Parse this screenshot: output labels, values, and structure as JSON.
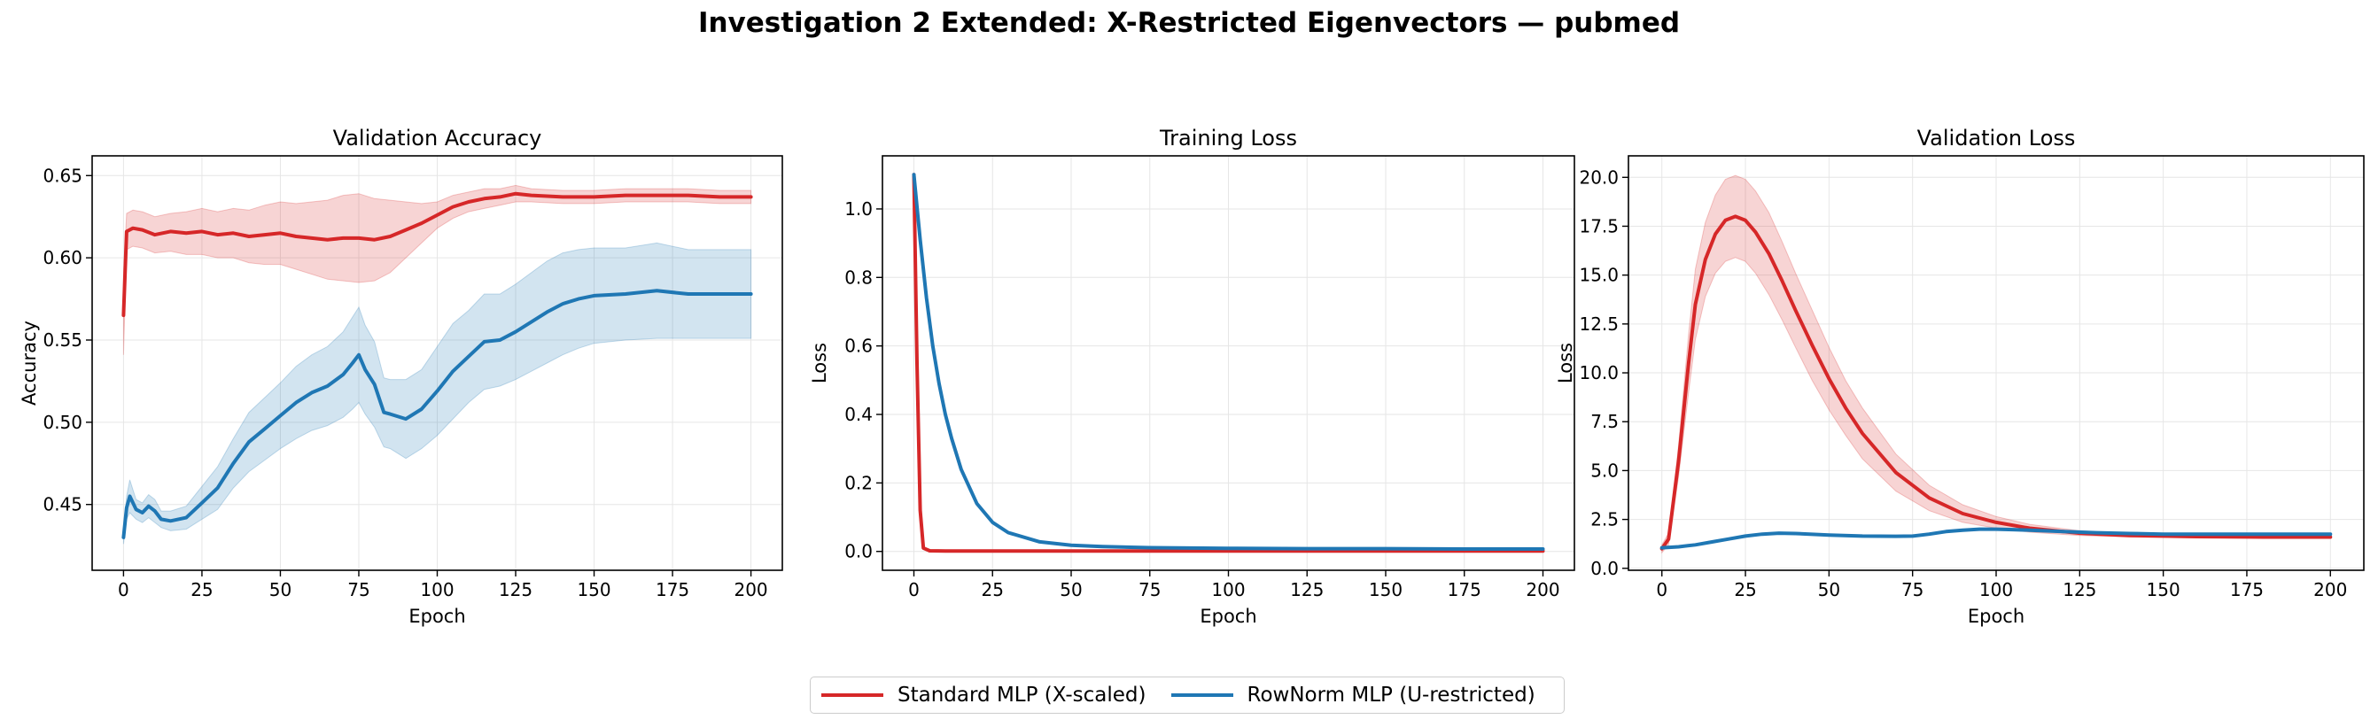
{
  "figure": {
    "title": "Investigation 2 Extended: X-Restricted Eigenvectors — pubmed"
  },
  "colors": {
    "standard": "#d62728",
    "rownorm": "#1f77b4",
    "grid": "#e6e6e6"
  },
  "legend": {
    "items": [
      {
        "label": "Standard MLP (X-scaled)",
        "color": "#d62728"
      },
      {
        "label": "RowNorm MLP (U-restricted)",
        "color": "#1f77b4"
      }
    ]
  },
  "chart_data": [
    {
      "type": "line",
      "title": "Validation Accuracy",
      "xlabel": "Epoch",
      "ylabel": "Accuracy",
      "xlim": [
        -10,
        210
      ],
      "ylim": [
        0.41,
        0.662
      ],
      "xticks": [
        0,
        25,
        50,
        75,
        100,
        125,
        150,
        175,
        200
      ],
      "yticks": [
        0.45,
        0.5,
        0.55,
        0.6,
        0.65
      ],
      "ytick_labels": [
        "0.45",
        "0.50",
        "0.55",
        "0.60",
        "0.65"
      ],
      "grid": true,
      "series": [
        {
          "name": "Standard MLP (X-scaled)",
          "color": "#d62728",
          "x": [
            0,
            1,
            3,
            6,
            10,
            15,
            20,
            25,
            30,
            35,
            40,
            45,
            50,
            55,
            60,
            65,
            70,
            75,
            80,
            85,
            90,
            95,
            100,
            105,
            110,
            115,
            120,
            125,
            130,
            140,
            150,
            160,
            170,
            180,
            190,
            200
          ],
          "y": [
            0.565,
            0.616,
            0.618,
            0.617,
            0.614,
            0.616,
            0.615,
            0.616,
            0.614,
            0.615,
            0.613,
            0.614,
            0.615,
            0.613,
            0.612,
            0.611,
            0.612,
            0.612,
            0.611,
            0.613,
            0.617,
            0.621,
            0.626,
            0.631,
            0.634,
            0.636,
            0.637,
            0.639,
            0.638,
            0.637,
            0.637,
            0.638,
            0.638,
            0.638,
            0.637,
            0.637
          ],
          "lower": [
            0.541,
            0.605,
            0.607,
            0.606,
            0.603,
            0.604,
            0.602,
            0.602,
            0.6,
            0.6,
            0.597,
            0.596,
            0.596,
            0.593,
            0.59,
            0.587,
            0.586,
            0.585,
            0.586,
            0.591,
            0.6,
            0.609,
            0.618,
            0.624,
            0.628,
            0.63,
            0.632,
            0.634,
            0.634,
            0.633,
            0.633,
            0.634,
            0.634,
            0.634,
            0.633,
            0.633
          ],
          "upper": [
            0.589,
            0.627,
            0.629,
            0.628,
            0.625,
            0.627,
            0.628,
            0.63,
            0.628,
            0.63,
            0.629,
            0.632,
            0.634,
            0.633,
            0.634,
            0.635,
            0.638,
            0.639,
            0.636,
            0.635,
            0.634,
            0.633,
            0.634,
            0.638,
            0.64,
            0.642,
            0.642,
            0.644,
            0.642,
            0.641,
            0.641,
            0.642,
            0.642,
            0.642,
            0.641,
            0.641
          ]
        },
        {
          "name": "RowNorm MLP (U-restricted)",
          "color": "#1f77b4",
          "x": [
            0,
            1,
            2,
            4,
            6,
            8,
            10,
            12,
            15,
            20,
            25,
            30,
            35,
            40,
            45,
            50,
            55,
            60,
            65,
            70,
            73,
            75,
            77,
            80,
            83,
            85,
            90,
            95,
            100,
            105,
            110,
            115,
            120,
            125,
            130,
            135,
            140,
            145,
            150,
            160,
            170,
            180,
            190,
            200
          ],
          "y": [
            0.43,
            0.448,
            0.455,
            0.447,
            0.445,
            0.449,
            0.446,
            0.441,
            0.44,
            0.442,
            0.451,
            0.46,
            0.475,
            0.488,
            0.496,
            0.504,
            0.512,
            0.518,
            0.522,
            0.529,
            0.536,
            0.541,
            0.532,
            0.523,
            0.506,
            0.505,
            0.502,
            0.508,
            0.519,
            0.531,
            0.54,
            0.549,
            0.55,
            0.555,
            0.561,
            0.567,
            0.572,
            0.575,
            0.577,
            0.578,
            0.58,
            0.578,
            0.578,
            0.578
          ],
          "lower": [
            0.426,
            0.441,
            0.445,
            0.441,
            0.439,
            0.442,
            0.439,
            0.436,
            0.434,
            0.435,
            0.441,
            0.447,
            0.46,
            0.47,
            0.477,
            0.484,
            0.49,
            0.495,
            0.498,
            0.503,
            0.508,
            0.512,
            0.505,
            0.497,
            0.485,
            0.484,
            0.478,
            0.484,
            0.492,
            0.502,
            0.512,
            0.52,
            0.522,
            0.526,
            0.531,
            0.536,
            0.541,
            0.545,
            0.548,
            0.55,
            0.551,
            0.551,
            0.551,
            0.551
          ],
          "upper": [
            0.434,
            0.455,
            0.465,
            0.453,
            0.451,
            0.456,
            0.453,
            0.446,
            0.446,
            0.449,
            0.461,
            0.473,
            0.49,
            0.506,
            0.515,
            0.524,
            0.534,
            0.541,
            0.546,
            0.555,
            0.564,
            0.57,
            0.559,
            0.549,
            0.527,
            0.526,
            0.526,
            0.532,
            0.546,
            0.56,
            0.568,
            0.578,
            0.578,
            0.584,
            0.591,
            0.598,
            0.603,
            0.605,
            0.606,
            0.606,
            0.609,
            0.605,
            0.605,
            0.605
          ]
        }
      ]
    },
    {
      "type": "line",
      "title": "Training Loss",
      "xlabel": "Epoch",
      "ylabel": "Loss",
      "xlim": [
        -10,
        210
      ],
      "ylim": [
        -0.055,
        1.155
      ],
      "xticks": [
        0,
        25,
        50,
        75,
        100,
        125,
        150,
        175,
        200
      ],
      "yticks": [
        0,
        0.2,
        0.4,
        0.6,
        0.8,
        1.0
      ],
      "ytick_labels": [
        "0.0",
        "0.2",
        "0.4",
        "0.6",
        "0.8",
        "1.0"
      ],
      "grid": true,
      "series": [
        {
          "name": "Standard MLP (X-scaled)",
          "color": "#d62728",
          "x": [
            0,
            1,
            2,
            3,
            5,
            10,
            50,
            100,
            150,
            200
          ],
          "y": [
            1.1,
            0.55,
            0.12,
            0.01,
            0.002,
            0.001,
            0.001,
            0.001,
            0.001,
            0.001
          ]
        },
        {
          "name": "RowNorm MLP (U-restricted)",
          "color": "#1f77b4",
          "x": [
            0,
            2,
            4,
            6,
            8,
            10,
            12,
            15,
            20,
            25,
            30,
            40,
            50,
            60,
            75,
            100,
            125,
            150,
            175,
            200
          ],
          "y": [
            1.1,
            0.91,
            0.74,
            0.6,
            0.49,
            0.4,
            0.33,
            0.24,
            0.14,
            0.085,
            0.055,
            0.028,
            0.018,
            0.014,
            0.011,
            0.009,
            0.008,
            0.008,
            0.007,
            0.007
          ]
        }
      ]
    },
    {
      "type": "line",
      "title": "Validation Loss",
      "xlabel": "Epoch",
      "ylabel": "Loss",
      "xlim": [
        -10,
        210
      ],
      "ylim": [
        -0.1,
        21.1
      ],
      "xticks": [
        0,
        25,
        50,
        75,
        100,
        125,
        150,
        175,
        200
      ],
      "yticks": [
        0,
        2.5,
        5,
        7.5,
        10,
        12.5,
        15,
        17.5,
        20
      ],
      "ytick_labels": [
        "0.0",
        "2.5",
        "5.0",
        "7.5",
        "10.0",
        "12.5",
        "15.0",
        "17.5",
        "20.0"
      ],
      "grid": true,
      "series": [
        {
          "name": "Standard MLP (X-scaled)",
          "color": "#d62728",
          "x": [
            0,
            2,
            5,
            8,
            10,
            13,
            16,
            19,
            22,
            25,
            28,
            32,
            36,
            40,
            45,
            50,
            55,
            60,
            70,
            80,
            90,
            100,
            110,
            125,
            140,
            160,
            180,
            200
          ],
          "y": [
            1.0,
            1.5,
            5.5,
            10.5,
            13.5,
            15.8,
            17.1,
            17.8,
            18.0,
            17.8,
            17.2,
            16.1,
            14.7,
            13.2,
            11.4,
            9.7,
            8.2,
            6.9,
            4.9,
            3.6,
            2.8,
            2.35,
            2.05,
            1.8,
            1.68,
            1.62,
            1.6,
            1.6
          ],
          "lower": [
            0.8,
            1.2,
            4.7,
            9.0,
            11.7,
            13.9,
            15.1,
            15.7,
            15.9,
            15.7,
            15.1,
            14.0,
            12.7,
            11.3,
            9.6,
            8.1,
            6.8,
            5.6,
            3.95,
            2.95,
            2.35,
            2.05,
            1.85,
            1.68,
            1.6,
            1.56,
            1.55,
            1.55
          ],
          "upper": [
            1.2,
            1.8,
            6.3,
            12.0,
            15.3,
            17.7,
            19.1,
            19.9,
            20.1,
            19.9,
            19.3,
            18.2,
            16.7,
            15.1,
            13.2,
            11.3,
            9.6,
            8.2,
            5.85,
            4.25,
            3.25,
            2.65,
            2.25,
            1.92,
            1.76,
            1.68,
            1.65,
            1.65
          ]
        },
        {
          "name": "RowNorm MLP (U-restricted)",
          "color": "#1f77b4",
          "x": [
            0,
            5,
            10,
            15,
            20,
            25,
            30,
            35,
            40,
            50,
            60,
            70,
            75,
            80,
            85,
            90,
            95,
            100,
            105,
            110,
            120,
            130,
            140,
            150,
            160,
            175,
            200
          ],
          "y": [
            1.05,
            1.1,
            1.2,
            1.35,
            1.5,
            1.65,
            1.75,
            1.8,
            1.78,
            1.7,
            1.65,
            1.64,
            1.65,
            1.75,
            1.88,
            1.95,
            2.0,
            2.0,
            1.98,
            1.95,
            1.88,
            1.82,
            1.78,
            1.75,
            1.75,
            1.75,
            1.75
          ]
        }
      ]
    }
  ]
}
